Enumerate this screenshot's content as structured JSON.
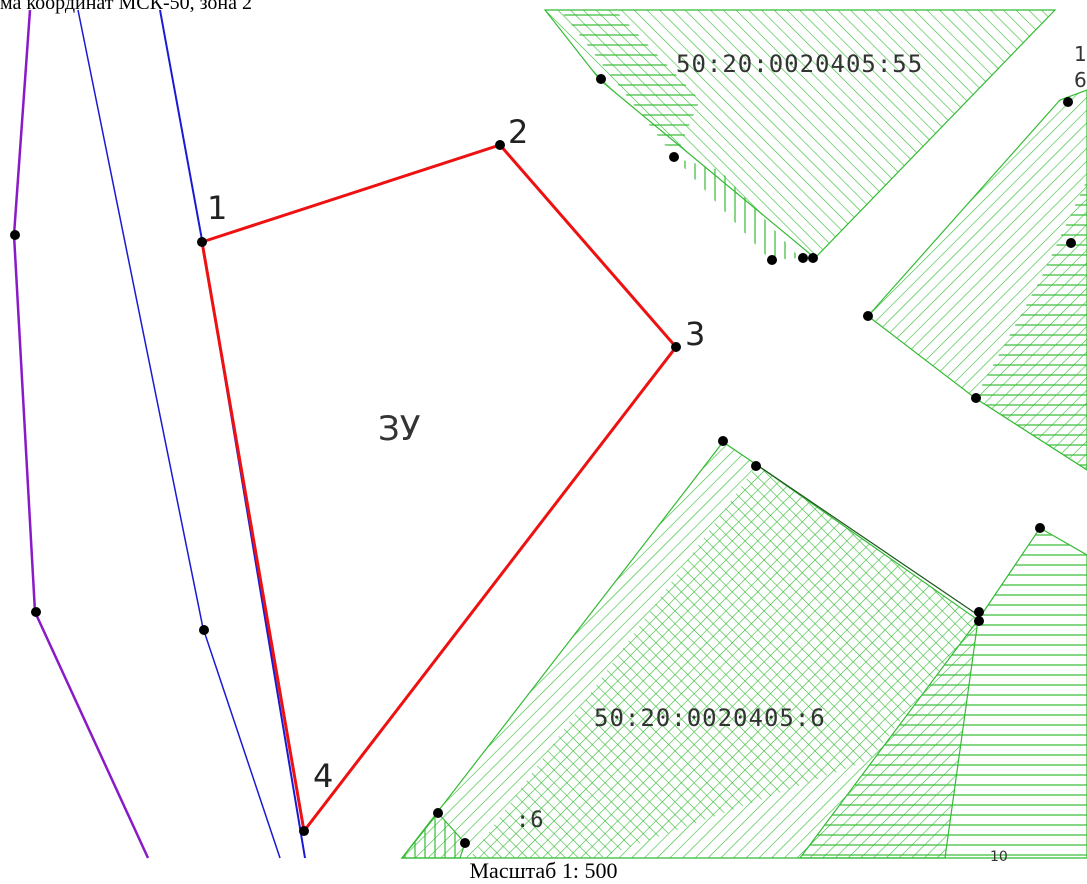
{
  "header": {
    "crs_text": "ма координат МСК-50, зона 2"
  },
  "scale": {
    "text": "Масштаб 1: 500"
  },
  "plot": {
    "label": "ЗУ",
    "points": [
      "1",
      "2",
      "3",
      "4"
    ]
  },
  "parcels": {
    "north": "50:20:0020405:55",
    "south": "50:20:0020405:6",
    "south_small": ":6"
  },
  "edge_labels": {
    "top_right_a": "1",
    "top_right_b": "6",
    "bottom_right": "10"
  },
  "colors": {
    "plot_boundary": "#ee1111",
    "parcel_hatch": "#33bb33",
    "line_blue": "#1a1ad4",
    "line_purple": "#8a1ac8",
    "point": "#000000"
  },
  "icons": [
    "boundary-point-marker"
  ]
}
